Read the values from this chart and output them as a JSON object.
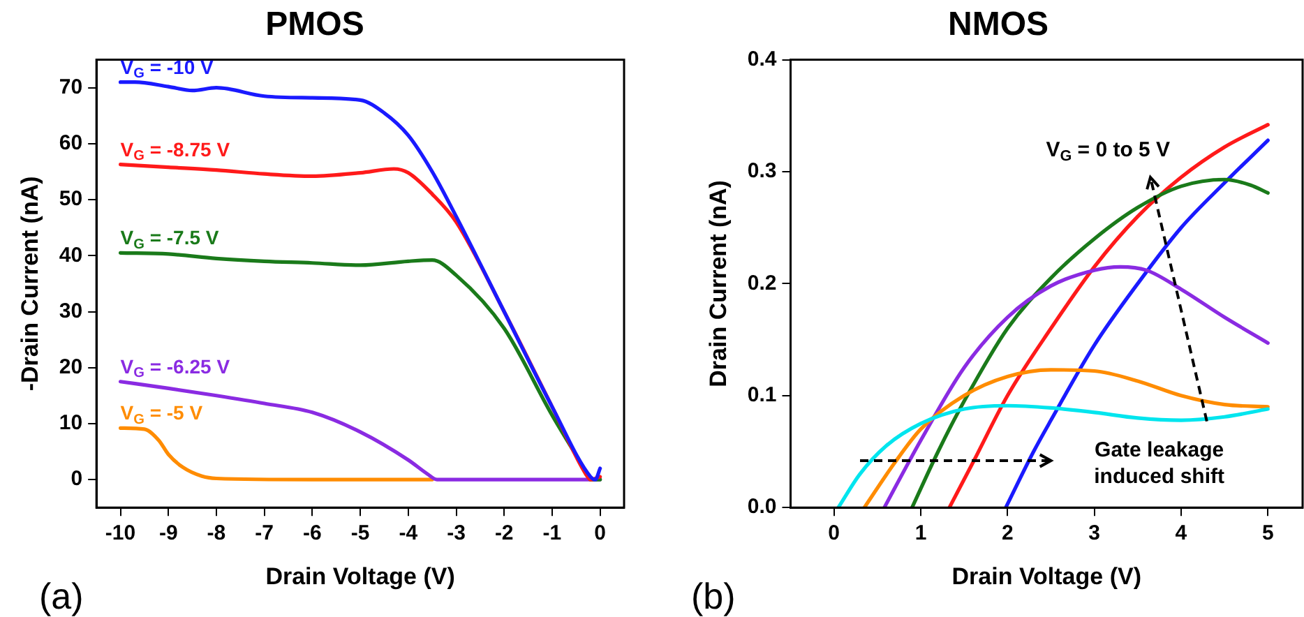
{
  "chart_data": [
    {
      "type": "line",
      "title": "PMOS",
      "xlabel": "Drain Voltage (V)",
      "ylabel": "-Drain Current (nA)",
      "xlim": [
        -10.5,
        0.5
      ],
      "ylim": [
        -5,
        75
      ],
      "xticks": [
        -10,
        -9,
        -8,
        -7,
        -6,
        -5,
        -4,
        -3,
        -2,
        -1,
        0
      ],
      "yticks": [
        0,
        10,
        20,
        30,
        40,
        50,
        60,
        70
      ],
      "grid": false,
      "marker": "none",
      "line_style": "solid",
      "annotations": [
        "(a)"
      ],
      "series": [
        {
          "name": "V$_{G}$ = -10 V",
          "color": "#1a1aff",
          "x": [
            -10,
            -9.7,
            -9,
            -8.5,
            -8,
            -7,
            -6,
            -5,
            -4.5,
            -4,
            -3.5,
            -3,
            -2,
            -1,
            -0.2,
            -0.1,
            0
          ],
          "values": [
            71,
            71,
            70.2,
            69.5,
            70,
            68.5,
            68.2,
            67.8,
            65.5,
            61.5,
            55,
            47,
            30,
            13,
            0.5,
            0,
            2
          ]
        },
        {
          "name": "V$_{G}$ = -8.75 V",
          "color": "#ff1a1a",
          "x": [
            -10,
            -9,
            -8,
            -7,
            -6,
            -5,
            -4.3,
            -4,
            -3.5,
            -3,
            -2,
            -1,
            -0.3,
            -0.2,
            0
          ],
          "values": [
            56.3,
            55.8,
            55.3,
            54.6,
            54.2,
            54.8,
            55.5,
            54.8,
            51,
            46,
            30,
            13,
            1,
            0,
            0.5
          ]
        },
        {
          "name": "V$_{G}$ = -7.5 V",
          "color": "#1a7a1a",
          "x": [
            -10,
            -9,
            -8,
            -7,
            -6,
            -5,
            -4,
            -3.5,
            -3,
            -2,
            -1,
            -0.3,
            -0.2,
            0
          ],
          "values": [
            40.5,
            40.3,
            39.5,
            39,
            38.7,
            38.3,
            39,
            39.2,
            36.5,
            27,
            11.5,
            1.5,
            0,
            0
          ]
        },
        {
          "name": "V$_{G}$ = -6.25 V",
          "color": "#8a2be2",
          "x": [
            -10,
            -9,
            -8,
            -7,
            -6,
            -5,
            -4,
            -3.6,
            -3.4,
            -2,
            0
          ],
          "values": [
            17.5,
            16.3,
            15,
            13.6,
            12,
            8.5,
            3.5,
            1,
            0,
            0,
            0
          ]
        },
        {
          "name": "V$_{G}$ = -5 V",
          "color": "#ff8c00",
          "x": [
            -10,
            -9.5,
            -9.2,
            -9,
            -8.7,
            -8.3,
            -8,
            -6,
            -3.5
          ],
          "values": [
            9.2,
            9,
            7,
            4.5,
            2.2,
            0.6,
            0.2,
            0,
            0
          ]
        }
      ]
    },
    {
      "type": "line",
      "title": "NMOS",
      "xlabel": "Drain Voltage (V)",
      "ylabel": "Drain Current (nA)",
      "xlim": [
        -0.5,
        5.4
      ],
      "ylim": [
        0,
        0.4
      ],
      "xticks": [
        0,
        1,
        2,
        3,
        4,
        5
      ],
      "yticks": [
        {
          "value": 0,
          "label": "0.0"
        },
        {
          "value": 0.1,
          "label": "0.1"
        },
        {
          "value": 0.2,
          "label": "0.2"
        },
        {
          "value": 0.3,
          "label": "0.3"
        },
        {
          "value": 0.4,
          "label": "0.4"
        }
      ],
      "grid": false,
      "marker": "none",
      "line_style": "solid",
      "annotations": [
        "V$_{G}$ = 0 to 5 V",
        "Gate leakage induced shift",
        "(b)"
      ],
      "series": [
        {
          "color": "#00e5ee",
          "x": [
            0.05,
            0.3,
            0.6,
            1,
            1.5,
            2,
            2.5,
            3,
            3.5,
            4,
            4.5,
            5
          ],
          "values": [
            0,
            0.03,
            0.055,
            0.075,
            0.088,
            0.091,
            0.089,
            0.085,
            0.08,
            0.078,
            0.081,
            0.088
          ]
        },
        {
          "color": "#ff8c00",
          "x": [
            0.35,
            0.7,
            1,
            1.5,
            2,
            2.5,
            3,
            3.5,
            4,
            4.5,
            5
          ],
          "values": [
            0,
            0.04,
            0.07,
            0.1,
            0.117,
            0.123,
            0.122,
            0.113,
            0.1,
            0.092,
            0.09
          ]
        },
        {
          "color": "#8a2be2",
          "x": [
            0.58,
            1,
            1.5,
            2,
            2.5,
            3,
            3.3,
            3.6,
            4,
            4.5,
            5
          ],
          "values": [
            0,
            0.06,
            0.125,
            0.17,
            0.198,
            0.212,
            0.215,
            0.212,
            0.195,
            0.17,
            0.147
          ]
        },
        {
          "color": "#1a7a1a",
          "x": [
            0.9,
            1.2,
            1.5,
            2,
            2.5,
            3,
            3.5,
            4,
            4.5,
            4.8,
            5
          ],
          "values": [
            0,
            0.05,
            0.095,
            0.16,
            0.205,
            0.24,
            0.268,
            0.287,
            0.293,
            0.288,
            0.281
          ]
        },
        {
          "color": "#ff1a1a",
          "x": [
            1.33,
            1.6,
            2,
            2.5,
            3,
            3.5,
            4,
            4.5,
            5
          ],
          "values": [
            0,
            0.04,
            0.1,
            0.16,
            0.215,
            0.26,
            0.295,
            0.322,
            0.342
          ]
        },
        {
          "color": "#1a1aff",
          "x": [
            1.98,
            2.3,
            2.5,
            3,
            3.5,
            4,
            4.5,
            5
          ],
          "values": [
            0,
            0.05,
            0.078,
            0.145,
            0.2,
            0.25,
            0.29,
            0.328
          ]
        }
      ]
    }
  ]
}
